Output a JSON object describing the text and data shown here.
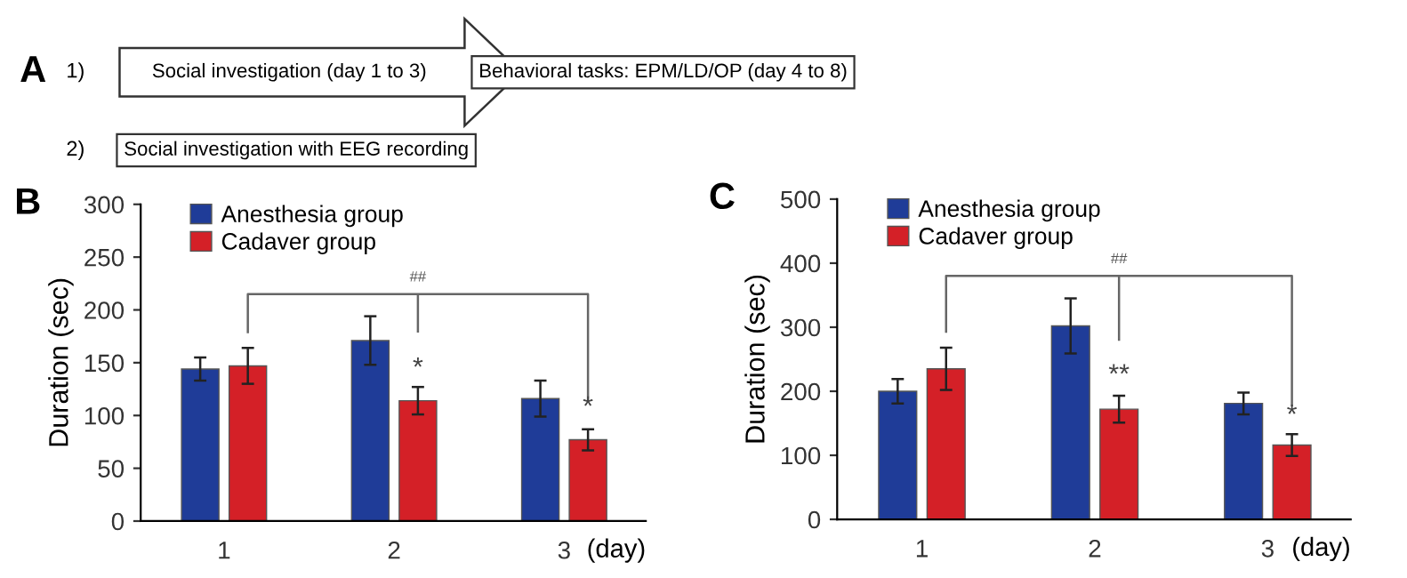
{
  "chart_data": [
    {
      "type": "other",
      "title": "A",
      "annotations": [
        "1)",
        "Social investigation (day 1 to 3)",
        "Behavioral tasks: EPM/LD/OP (day 4 to 8)",
        "2)",
        "Social investigation with EEG recording"
      ]
    },
    {
      "type": "bar",
      "title": "B",
      "ylabel": "Duration (sec)",
      "xlabel": "(day)",
      "categories": [
        "1",
        "2",
        "3"
      ],
      "series": [
        {
          "name": "Anesthesia group",
          "color": "#1f3c98",
          "values": [
            144,
            171,
            116
          ],
          "errors": [
            11,
            23,
            17
          ]
        },
        {
          "name": "Cadaver group",
          "color": "#d42027",
          "values": [
            147,
            114,
            77
          ],
          "errors": [
            17,
            13,
            10
          ]
        }
      ],
      "ylim": [
        0,
        300
      ],
      "yticks": [
        0,
        50,
        100,
        150,
        200,
        250,
        300
      ],
      "grid": false,
      "legend": "top left",
      "annotations": [
        {
          "text": "*",
          "x": "2",
          "y": 144
        },
        {
          "text": "*",
          "x": "3",
          "y": 107
        },
        "##"
      ]
    },
    {
      "type": "bar",
      "title": "C",
      "ylabel": "Duration (sec)",
      "xlabel": "(day)",
      "categories": [
        "1",
        "2",
        "3"
      ],
      "series": [
        {
          "name": "Anesthesia group",
          "color": "#1f3c98",
          "values": [
            200,
            302,
            181
          ],
          "errors": [
            19,
            43,
            17
          ]
        },
        {
          "name": "Cadaver group",
          "color": "#d42027",
          "values": [
            235,
            172,
            116
          ],
          "errors": [
            33,
            21,
            17
          ]
        }
      ],
      "ylim": [
        0,
        500
      ],
      "yticks": [
        0,
        100,
        200,
        300,
        400,
        500
      ],
      "grid": false,
      "legend": "top left",
      "annotations": [
        {
          "text": "**",
          "x": "2",
          "y": 224
        },
        {
          "text": "*",
          "x": "3",
          "y": 161
        },
        "##"
      ]
    }
  ]
}
